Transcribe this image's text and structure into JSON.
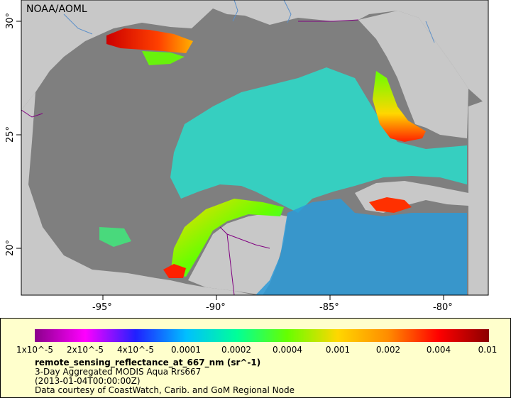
{
  "map": {
    "watermark": "NOAA/AOML",
    "x_ticks": [
      "-95°",
      "-90°",
      "-85°",
      "-80°"
    ],
    "y_ticks": [
      "30°",
      "25°",
      "20°"
    ],
    "colors": {
      "ocean_nodata": "#7f7f7f",
      "land": "#c8c8c8",
      "border_lines": "#800080",
      "rivers": "#5b8fc9"
    }
  },
  "legend": {
    "ticks": [
      "1x10^-5",
      "2x10^-5",
      "4x10^-5",
      "0.0001",
      "0.0002",
      "0.0004",
      "0.001",
      "0.002",
      "0.004",
      "0.01"
    ],
    "colorbar_stops": [
      "#8b008b",
      "#ff00ff",
      "#2020ff",
      "#00bfff",
      "#00ff99",
      "#66ff00",
      "#ffd700",
      "#ff8c00",
      "#ff0000",
      "#8b0000"
    ],
    "title": "remote_sensing_reflectance_at_667_nm (sr^-1)",
    "line1": "3-Day Aggregated MODIS Aqua Rrs667",
    "line2": "(2013-01-04T00:00:00Z)",
    "line3": "Data courtesy of CoastWatch, Carib. and GoM Regional Node"
  }
}
